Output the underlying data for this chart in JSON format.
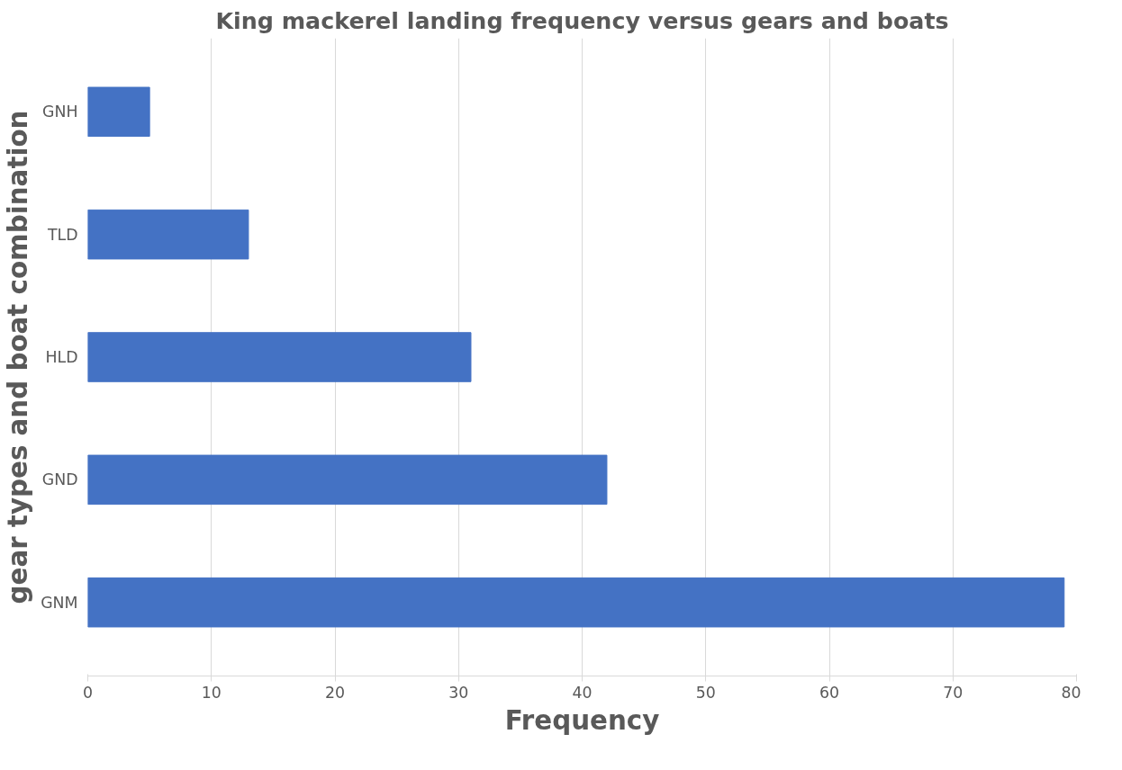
{
  "chart_data": {
    "type": "bar",
    "orientation": "horizontal",
    "title": "King mackerel landing frequency versus gears and boats",
    "xlabel": "Frequency",
    "ylabel": "gear types and boat combination",
    "categories": [
      "GNH",
      "TLD",
      "HLD",
      "GND",
      "GNM"
    ],
    "values": [
      5,
      13,
      31,
      42,
      79
    ],
    "color": "#4472c4",
    "xlim": [
      0,
      80
    ],
    "xticks": [
      0,
      10,
      20,
      30,
      40,
      50,
      60,
      70,
      80
    ],
    "grid": "x"
  }
}
